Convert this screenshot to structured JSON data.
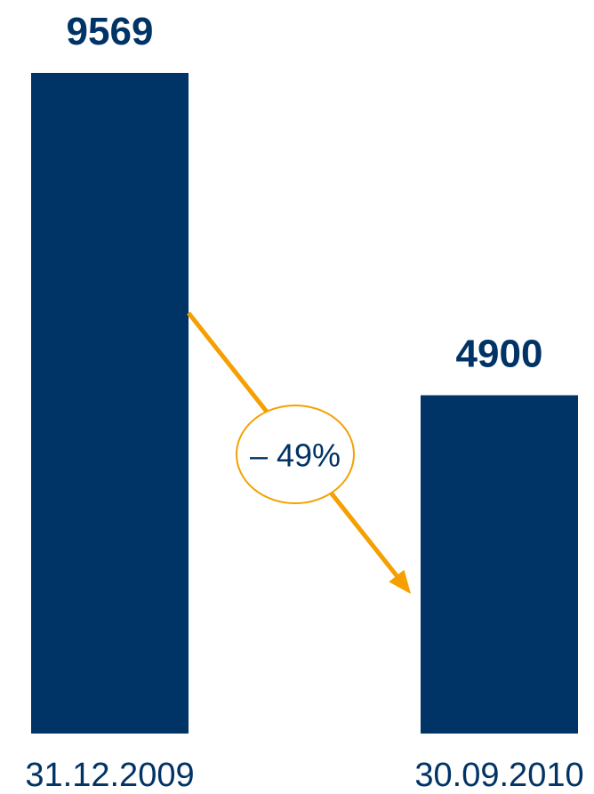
{
  "chart_data": {
    "type": "bar",
    "categories": [
      "31.12.2009",
      "30.09.2010"
    ],
    "values": [
      9569,
      4900
    ],
    "data_labels": [
      "9569",
      "4900"
    ],
    "ylim": [
      0,
      9569
    ],
    "grid": false,
    "annotation": {
      "type": "arrow",
      "from_category": "31.12.2009",
      "to_category": "30.09.2010",
      "text": "– 49%",
      "color": "#f5a000"
    }
  },
  "colors": {
    "bar": "#003366",
    "value_text": "#003366",
    "category_text": "#003366",
    "arrow": "#f5a000",
    "annotation_text": "#003366"
  }
}
